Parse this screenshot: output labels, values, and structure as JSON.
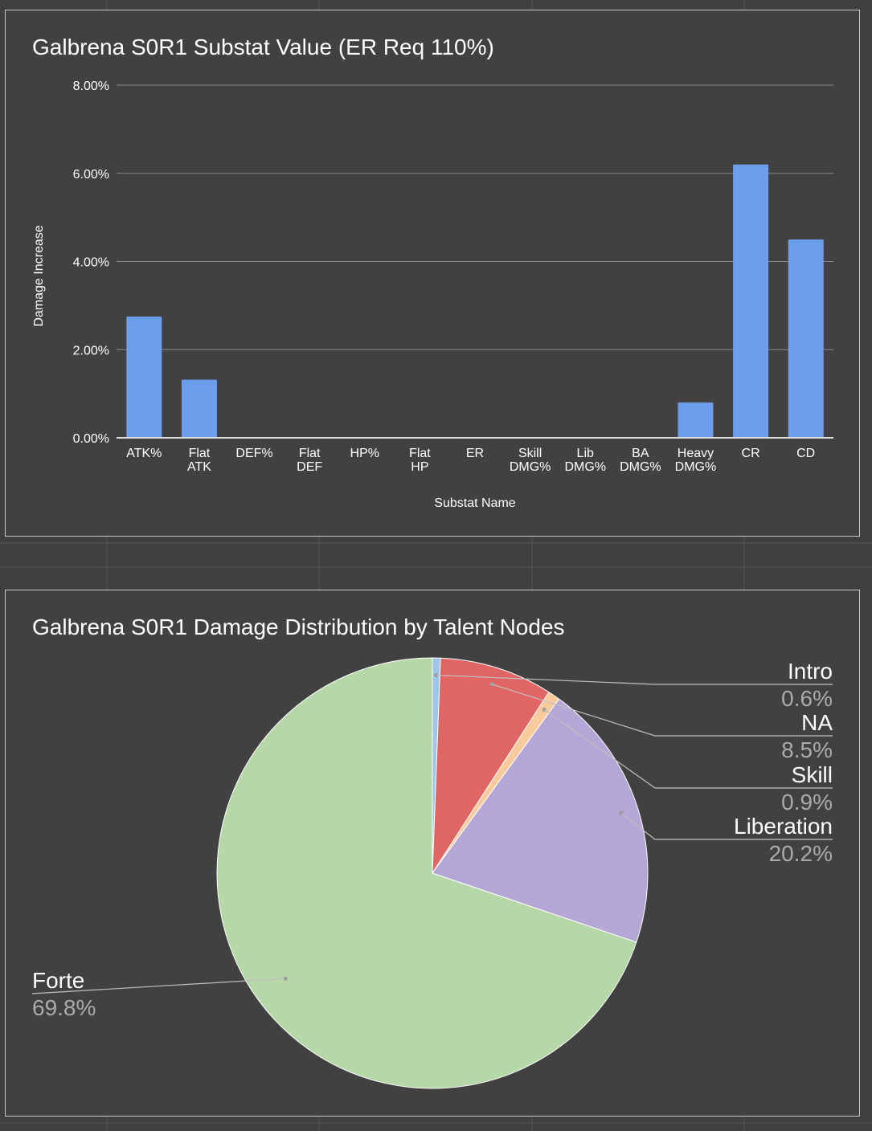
{
  "colors": {
    "background": "#3f3f3f",
    "panel": "#414141",
    "grid": "#8a8a8a",
    "axis": "#e0e0e0",
    "text": "#ffffff",
    "percent_text": "#aaaaaa",
    "bar": "#6d9eeb"
  },
  "chart_data": [
    {
      "type": "bar",
      "title": "Galbrena S0R1 Substat Value (ER Req 110%)",
      "xlabel": "Substat Name",
      "ylabel": "Damage Increase",
      "ylim": [
        0,
        8
      ],
      "yticks": [
        "0.00%",
        "2.00%",
        "4.00%",
        "6.00%",
        "8.00%"
      ],
      "grid": true,
      "categories": [
        "ATK%",
        "Flat\nATK",
        "DEF%",
        "Flat\nDEF",
        "HP%",
        "Flat\nHP",
        "ER",
        "Skill\nDMG%",
        "Lib\nDMG%",
        "BA\nDMG%",
        "Heavy\nDMG%",
        "CR",
        "CD"
      ],
      "values": [
        2.75,
        1.32,
        0,
        0,
        0,
        0,
        0,
        0,
        0,
        0,
        0.8,
        6.2,
        4.5
      ],
      "bar_color": "#6d9eeb"
    },
    {
      "type": "pie",
      "title": "Galbrena S0R1 Damage Distribution by Talent Nodes",
      "slices": [
        {
          "label": "Intro",
          "value": 0.6,
          "display": "0.6%",
          "color": "#9fc5e8"
        },
        {
          "label": "NA",
          "value": 8.5,
          "display": "8.5%",
          "color": "#e06666"
        },
        {
          "label": "Skill",
          "value": 0.9,
          "display": "0.9%",
          "color": "#f9cb9c"
        },
        {
          "label": "Liberation",
          "value": 20.2,
          "display": "20.2%",
          "color": "#b4a7d6"
        },
        {
          "label": "Forte",
          "value": 69.8,
          "display": "69.8%",
          "color": "#b6d7a8"
        }
      ]
    }
  ]
}
